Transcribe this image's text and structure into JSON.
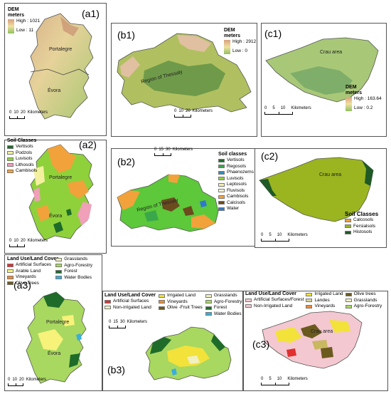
{
  "panels": {
    "a1": {
      "label": "(a1)",
      "legend_title": "DEM meters",
      "high": "High : 1021",
      "low": "Low : 11",
      "places": [
        "Portalegre",
        "Évora"
      ],
      "scale": [
        "0",
        "10",
        "20",
        "Kilometers"
      ]
    },
    "b1": {
      "label": "(b1)",
      "legend_title": "DEM meters",
      "high": "High : 2912",
      "low": "Low : 0",
      "places": [
        "Region of Thessaly"
      ],
      "scale": [
        "0",
        "10",
        "20",
        "Kilometers"
      ]
    },
    "c1": {
      "label": "(c1)",
      "legend_title": "DEM meters",
      "high": "High : 163.64",
      "low": "Low : 0.2",
      "places": [
        "Crau area"
      ],
      "scale": [
        "0",
        "5",
        "10",
        "Kilometers"
      ]
    },
    "a2": {
      "label": "(a2)",
      "legend_title": "Soil Classes",
      "items": [
        "Vertisols",
        "Podzols",
        "Luvisols",
        "Lithosols",
        "Cambisols"
      ],
      "places": [
        "Portalegre",
        "Évora"
      ],
      "scale": [
        "0",
        "10",
        "20",
        "Kilometers"
      ]
    },
    "b2": {
      "label": "(b2)",
      "legend_title": "Soil classes",
      "items": [
        "Vertisols",
        "Regosols",
        "Phaenozems",
        "Luvisols",
        "Leptosols",
        "Fluvisols",
        "Cambisols",
        "Calcisols",
        "Water"
      ],
      "places": [
        "Region of Thessaly"
      ],
      "scale": [
        "0",
        "15",
        "30",
        "Kilometers"
      ]
    },
    "c2": {
      "label": "(c2)",
      "legend_title": "Soil Classes",
      "items": [
        "Calcosols",
        "Fersialsols",
        "Histosols"
      ],
      "places": [
        "Crau area"
      ],
      "scale": [
        "0",
        "5",
        "10",
        "Kilometers"
      ]
    },
    "a3": {
      "label": "(a3)",
      "legend_title": "Land Use/Land Cover",
      "items": [
        "Artificial Surfaces",
        "Arable Land",
        "Vineyards",
        "Olive Trees",
        "Grasslands",
        "Agro-Forestry",
        "Forest",
        "Water Bodies"
      ],
      "places": [
        "Portalegre",
        "Évora"
      ],
      "scale": [
        "0",
        "10",
        "20",
        "Kilometers"
      ]
    },
    "b3": {
      "label": "(b3)",
      "legend_title": "Land Use/Land Cover",
      "items": [
        "Artificial Surfaces",
        "Non-irrigated Land",
        "Irrigated Land",
        "Vineyards",
        "Olive -Fruit Trees",
        "Grasslands",
        "Agro-Forestry",
        "Forest",
        "Water Bodies"
      ],
      "places": [],
      "scale": [
        "0",
        "15",
        "30",
        "Kilometers"
      ]
    },
    "c3": {
      "label": "(c3)",
      "legend_title": "Land Use/Land Cover",
      "items": [
        "Artificial Surfaces/Forest",
        "Non-Irrigated Land",
        "Irrigated Land",
        "Landes",
        "Vineyards",
        "Olive trees",
        "Grasslands",
        "Agro-Forestry"
      ],
      "places": [
        "Crau area"
      ],
      "scale": [
        "0",
        "5",
        "10",
        "Kilometers"
      ]
    }
  },
  "colors": {
    "vertisols": "#1f6b2a",
    "podzols": "#f3f0a0",
    "luvisols": "#8fd13a",
    "lithosols": "#f0a0b8",
    "cambisols": "#f2a23a",
    "regosols": "#3aa84a",
    "phaenozems": "#2f8fbf",
    "leptosols": "#f5efb0",
    "fluvisols": "#fbf4d0",
    "calcisols": "#6b4a1e",
    "water": "#2f78d0",
    "calcosols": "#f2a23a",
    "fersialsols": "#9ab520",
    "histosols": "#1f5a26",
    "artificial": "#e03030",
    "arable": "#f7f27a",
    "vineyards": "#f08a30",
    "olive": "#6b5a1e",
    "grasslands": "#f0f0c0",
    "agroforestry": "#a8d860",
    "forest": "#1f6b2a",
    "waterbodies": "#3aaedb",
    "nonirrigated": "#f4c8d0",
    "irrigated": "#f2e23a",
    "landes": "#d8d2a0"
  }
}
